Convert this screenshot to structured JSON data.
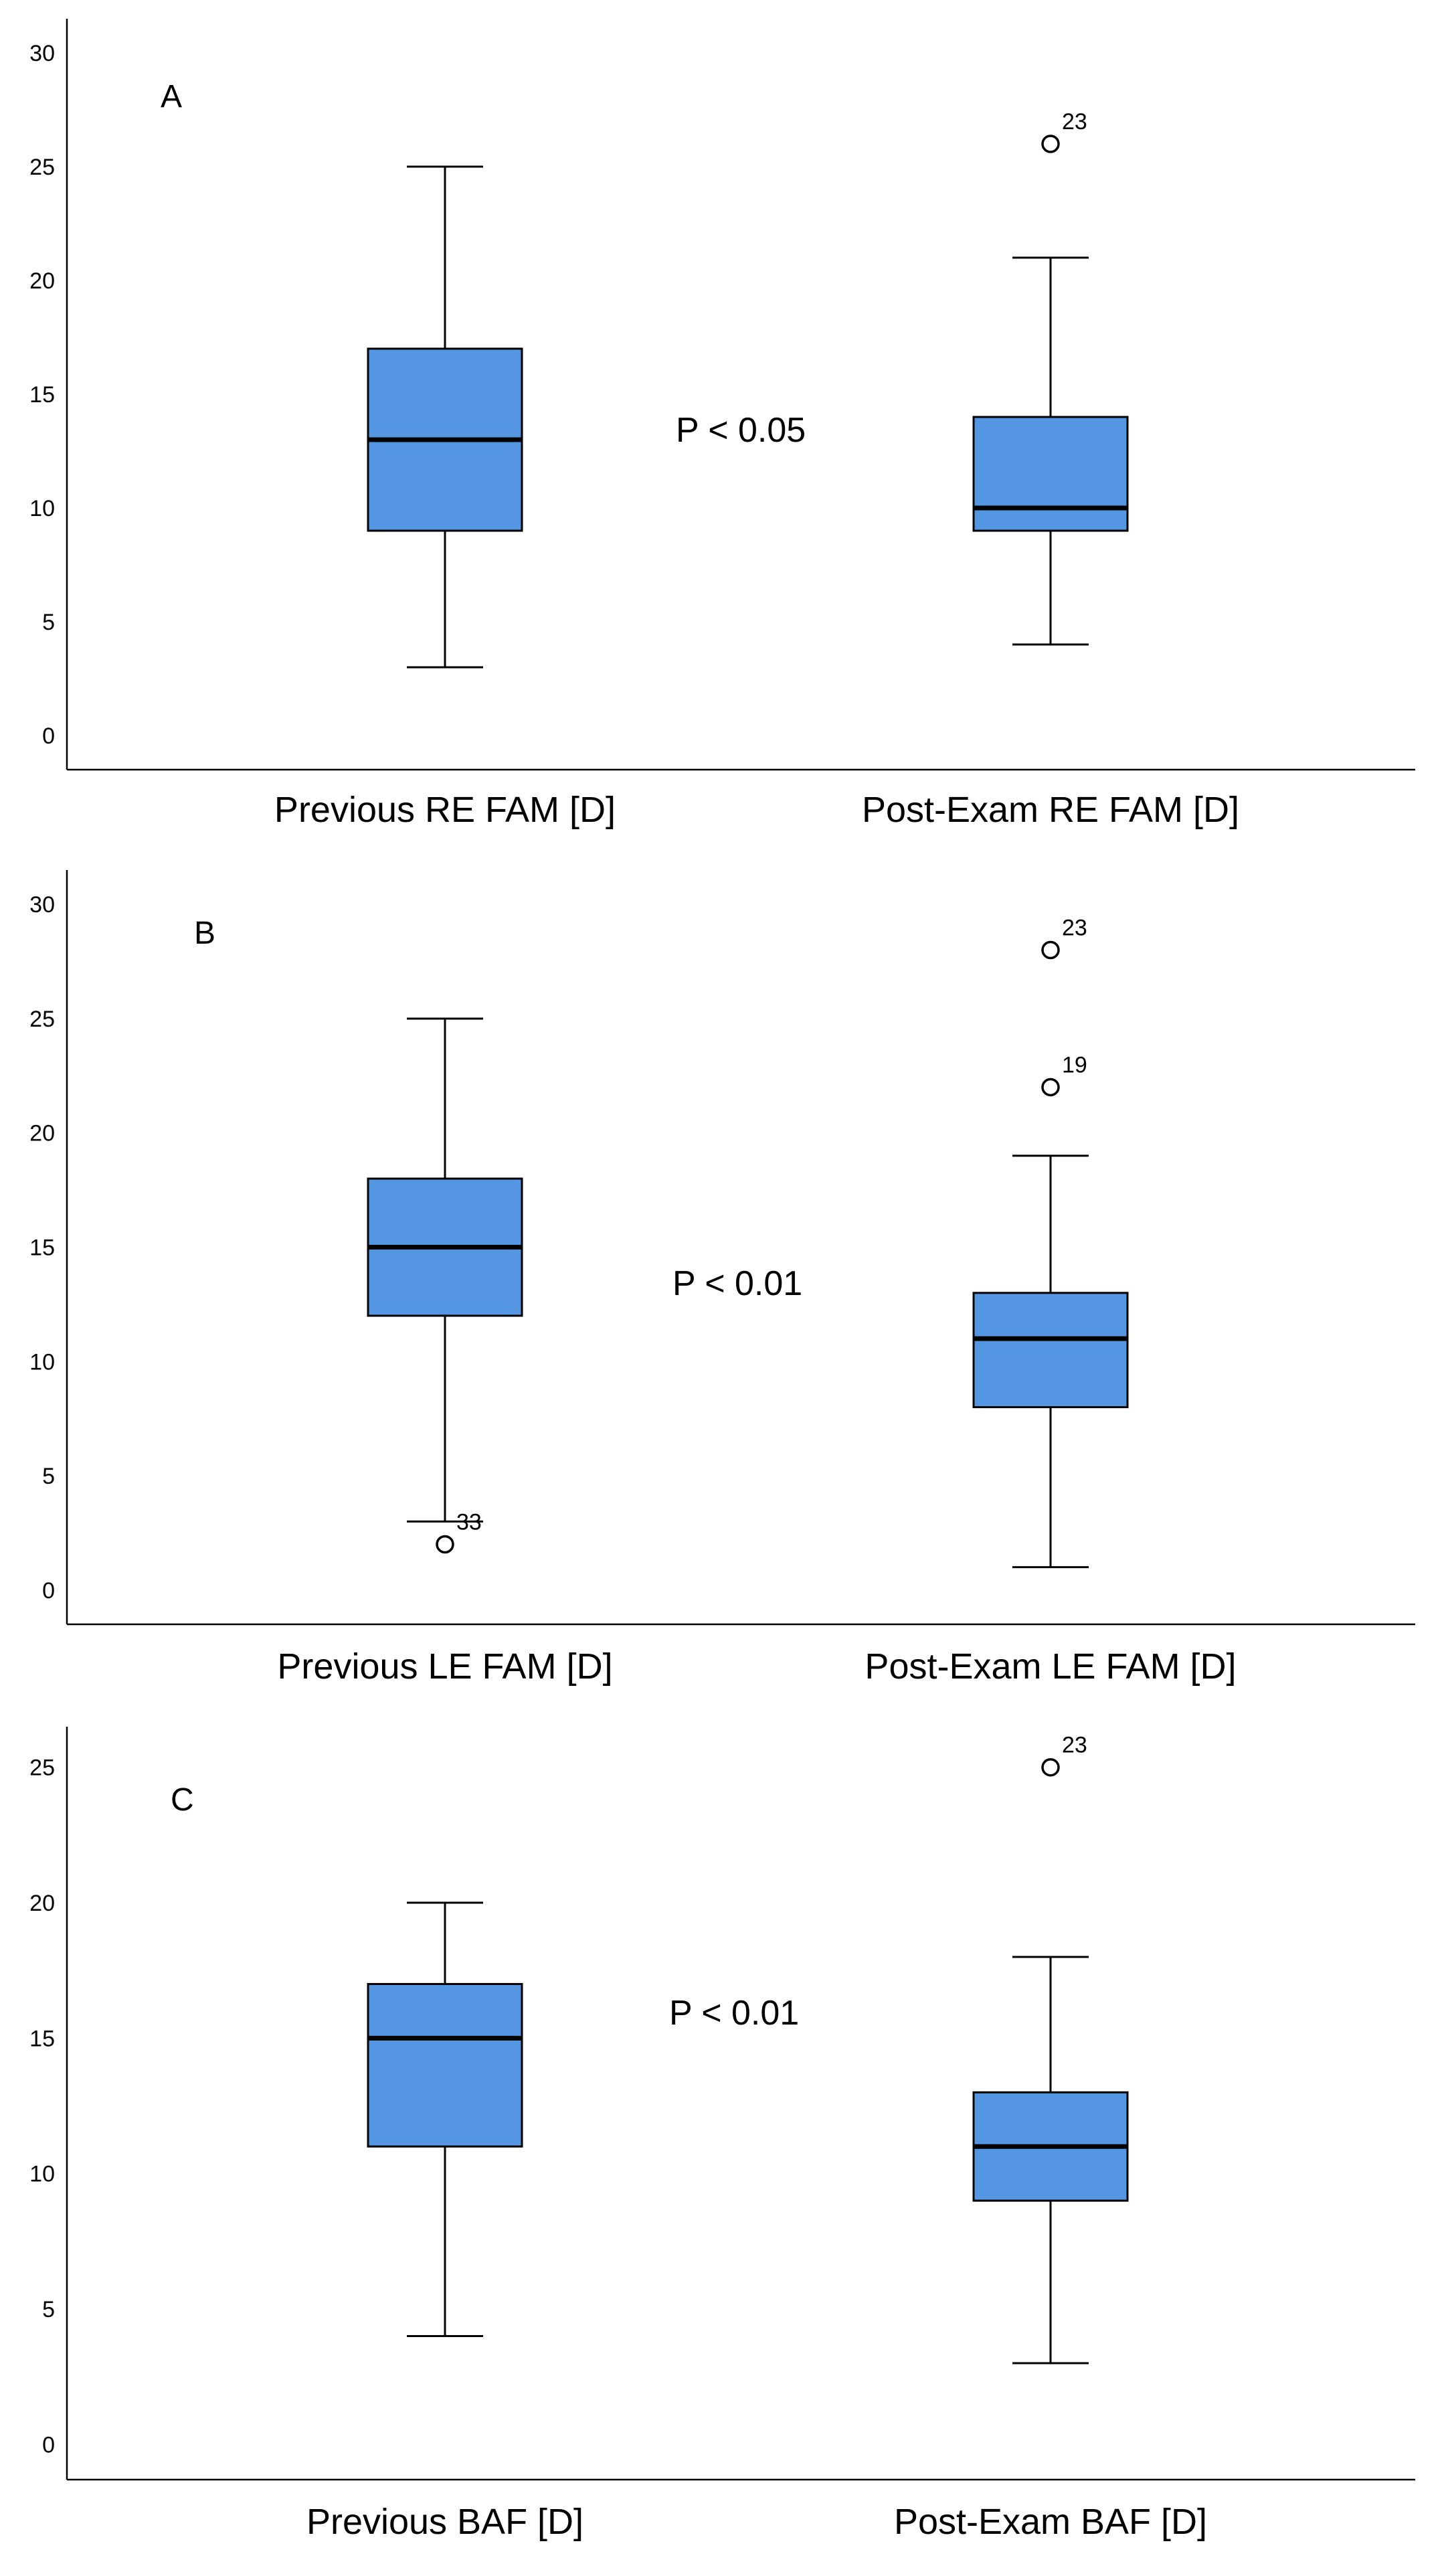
{
  "colors": {
    "box_fill": "#5596e2",
    "stroke": "#000000",
    "background": "#ffffff"
  },
  "chart_data": [
    {
      "type": "box",
      "panel_label": "A",
      "annotation": "P < 0.05",
      "ylim": [
        -1.5,
        31.5
      ],
      "yticks": [
        0,
        5,
        10,
        15,
        20,
        25,
        30
      ],
      "grid": false,
      "categories": [
        "Previous RE FAM [D]",
        "Post-Exam RE FAM [D]"
      ],
      "boxes": [
        {
          "whisker_low": 3,
          "q1": 9,
          "median": 13,
          "q3": 17,
          "whisker_high": 25,
          "outliers": []
        },
        {
          "whisker_low": 4,
          "q1": 9,
          "median": 10,
          "q3": 14,
          "whisker_high": 21,
          "outliers": [
            {
              "value": 26,
              "label": "23"
            }
          ]
        }
      ]
    },
    {
      "type": "box",
      "panel_label": "B",
      "annotation": "P < 0.01",
      "ylim": [
        -1.5,
        31.5
      ],
      "yticks": [
        0,
        5,
        10,
        15,
        20,
        25,
        30
      ],
      "grid": false,
      "categories": [
        "Previous LE FAM [D]",
        "Post-Exam LE FAM [D]"
      ],
      "boxes": [
        {
          "whisker_low": 3,
          "q1": 12,
          "median": 15,
          "q3": 18,
          "whisker_high": 25,
          "outliers": [
            {
              "value": 2,
              "label": "33"
            }
          ]
        },
        {
          "whisker_low": 1,
          "q1": 8,
          "median": 11,
          "q3": 13,
          "whisker_high": 19,
          "outliers": [
            {
              "value": 22,
              "label": "19"
            },
            {
              "value": 28,
              "label": "23"
            }
          ]
        }
      ]
    },
    {
      "type": "box",
      "panel_label": "C",
      "annotation": "P < 0.01",
      "ylim": [
        -1.3,
        26.5
      ],
      "yticks": [
        0,
        5,
        10,
        15,
        20,
        25
      ],
      "grid": false,
      "categories": [
        "Previous BAF [D]",
        "Post-Exam BAF [D]"
      ],
      "boxes": [
        {
          "whisker_low": 4,
          "q1": 11,
          "median": 15,
          "q3": 17,
          "whisker_high": 20,
          "outliers": []
        },
        {
          "whisker_low": 3,
          "q1": 9,
          "median": 11,
          "q3": 13,
          "whisker_high": 18,
          "outliers": [
            {
              "value": 25,
              "label": "23"
            }
          ]
        }
      ]
    }
  ]
}
